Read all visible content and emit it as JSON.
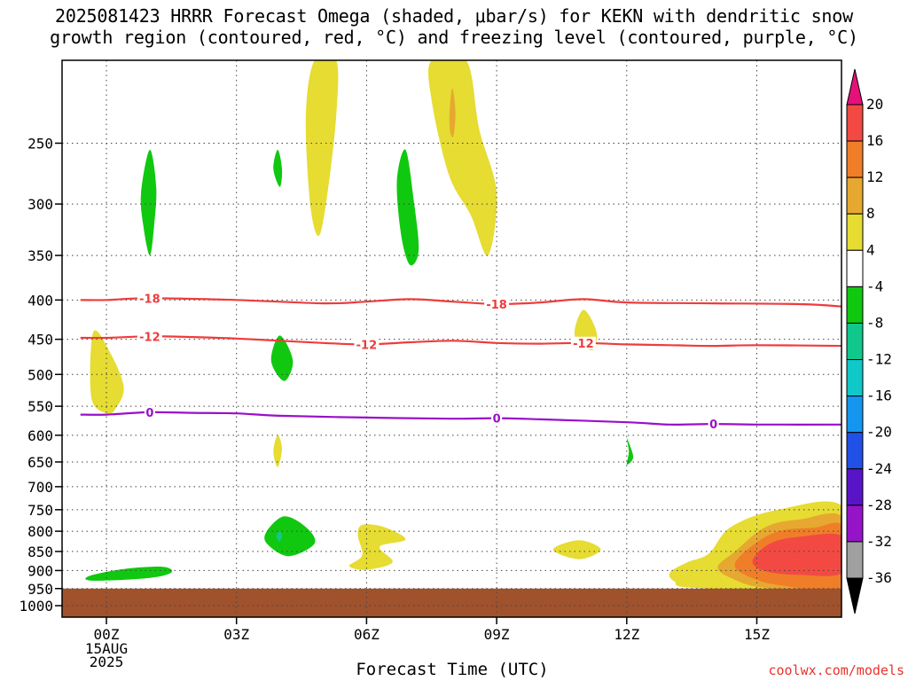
{
  "title_lines": [
    "2025081423 HRRR Forecast Omega (shaded, μbar/s) for KEKN with dendritic snow",
    "growth region (contoured, red, °C) and freezing level (contoured, purple, °C)"
  ],
  "credit": "coolwx.com/models",
  "chart_data": {
    "type": "heatmap",
    "xlabel": "Forecast Time (UTC)",
    "ylabel": "",
    "x_ticks": [
      {
        "hour": 0,
        "label": "00Z",
        "sub": [
          "15AUG",
          "2025"
        ]
      },
      {
        "hour": 3,
        "label": "03Z",
        "sub": []
      },
      {
        "hour": 6,
        "label": "06Z",
        "sub": []
      },
      {
        "hour": 9,
        "label": "09Z",
        "sub": []
      },
      {
        "hour": 12,
        "label": "12Z",
        "sub": []
      },
      {
        "hour": 15,
        "label": "15Z",
        "sub": []
      }
    ],
    "xlim": [
      -0.6,
      17
    ],
    "y_ticks": [
      250,
      300,
      350,
      400,
      450,
      500,
      550,
      600,
      650,
      700,
      750,
      800,
      850,
      900,
      950,
      1000
    ],
    "ylim": [
      195,
      1035
    ],
    "ground_level_hpa": 950,
    "colors": {
      "ground": "#a0522d",
      "red_contour": "#ee3c3c",
      "purple_contour": "#9a10c8"
    },
    "colorbar": {
      "labels": [
        "20",
        "16",
        "12",
        "8",
        "4",
        "-4",
        "-8",
        "-12",
        "-16",
        "-20",
        "-24",
        "-28",
        "-32",
        "-36"
      ],
      "bins": [
        {
          "range": ">20",
          "color": "#e5107a"
        },
        {
          "range": "16-20",
          "color": "#f24a42"
        },
        {
          "range": "12-16",
          "color": "#f07e28"
        },
        {
          "range": "8-12",
          "color": "#e6a830"
        },
        {
          "range": "4-8",
          "color": "#e6dc32"
        },
        {
          "range": "-4-4",
          "color": "#ffffff"
        },
        {
          "range": "-8--4",
          "color": "#10c810"
        },
        {
          "range": "-12--8",
          "color": "#10c88c"
        },
        {
          "range": "-16--12",
          "color": "#10c8c8"
        },
        {
          "range": "-20--16",
          "color": "#1496ef"
        },
        {
          "range": "-24--20",
          "color": "#2050e6"
        },
        {
          "range": "-28--24",
          "color": "#5a14c8"
        },
        {
          "range": "-32--28",
          "color": "#9614c8"
        },
        {
          "range": "-36--32",
          "color": "#a0a0a0"
        },
        {
          "range": "<-36",
          "color": "#000000"
        }
      ]
    },
    "contours": [
      {
        "value": "-18",
        "label": "-18",
        "color": "red",
        "points": [
          [
            -0.6,
            400
          ],
          [
            0,
            400
          ],
          [
            1,
            398
          ],
          [
            3,
            400
          ],
          [
            5,
            404
          ],
          [
            6,
            402
          ],
          [
            7,
            399
          ],
          [
            8,
            402
          ],
          [
            9,
            405
          ],
          [
            10,
            403
          ],
          [
            11,
            399
          ],
          [
            12,
            403
          ],
          [
            14,
            404
          ],
          [
            16,
            405
          ],
          [
            17,
            408
          ]
        ],
        "labels_at": [
          [
            1,
            398
          ],
          [
            9,
            405
          ]
        ]
      },
      {
        "value": "-12",
        "label": "-12",
        "color": "red",
        "points": [
          [
            -0.6,
            448
          ],
          [
            0,
            448
          ],
          [
            1,
            446
          ],
          [
            2,
            447
          ],
          [
            3,
            449
          ],
          [
            4,
            452
          ],
          [
            5,
            455
          ],
          [
            6,
            457
          ],
          [
            7,
            454
          ],
          [
            8,
            452
          ],
          [
            9,
            455
          ],
          [
            10,
            456
          ],
          [
            11,
            455
          ],
          [
            12,
            457
          ],
          [
            13,
            458
          ],
          [
            14,
            459
          ],
          [
            15,
            458
          ],
          [
            17,
            459
          ]
        ],
        "labels_at": [
          [
            1,
            446
          ],
          [
            6,
            457
          ],
          [
            11,
            455
          ]
        ]
      },
      {
        "value": "0",
        "label": "0",
        "color": "purple",
        "points": [
          [
            -0.6,
            564
          ],
          [
            0,
            564
          ],
          [
            1,
            560
          ],
          [
            2,
            561
          ],
          [
            3,
            562
          ],
          [
            4,
            566
          ],
          [
            6,
            569
          ],
          [
            8,
            571
          ],
          [
            9,
            570
          ],
          [
            10,
            572
          ],
          [
            12,
            577
          ],
          [
            13,
            581
          ],
          [
            14,
            580
          ],
          [
            15,
            581
          ],
          [
            17,
            581
          ]
        ],
        "labels_at": [
          [
            1,
            560
          ],
          [
            9,
            570
          ],
          [
            14,
            580
          ]
        ]
      }
    ],
    "omega_regions": [
      {
        "value": 4,
        "points": [
          [
            4.8,
            195
          ],
          [
            5.3,
            195
          ],
          [
            5.3,
            230
          ],
          [
            5.1,
            290
          ],
          [
            4.9,
            330
          ],
          [
            4.7,
            300
          ],
          [
            4.6,
            230
          ]
        ]
      },
      {
        "value": 4,
        "points": [
          [
            7.5,
            195
          ],
          [
            8.3,
            195
          ],
          [
            8.6,
            240
          ],
          [
            9.0,
            290
          ],
          [
            8.8,
            350
          ],
          [
            8.4,
            310
          ],
          [
            7.9,
            275
          ],
          [
            7.5,
            220
          ]
        ]
      },
      {
        "value": 8,
        "points": [
          [
            7.92,
            225
          ],
          [
            7.98,
            212
          ],
          [
            8.05,
            228
          ],
          [
            8.0,
            245
          ],
          [
            7.92,
            240
          ]
        ]
      },
      {
        "value": -4,
        "points": [
          [
            1.0,
            255
          ],
          [
            1.15,
            285
          ],
          [
            1.1,
            320
          ],
          [
            1.0,
            350
          ],
          [
            0.85,
            320
          ],
          [
            0.8,
            290
          ]
        ]
      },
      {
        "value": -4,
        "points": [
          [
            3.95,
            255
          ],
          [
            4.05,
            270
          ],
          [
            4.0,
            285
          ],
          [
            3.85,
            270
          ]
        ]
      },
      {
        "value": -4,
        "points": [
          [
            6.9,
            255
          ],
          [
            7.1,
            300
          ],
          [
            7.2,
            345
          ],
          [
            7.0,
            360
          ],
          [
            6.8,
            330
          ],
          [
            6.7,
            280
          ]
        ]
      },
      {
        "value": 4,
        "points": [
          [
            -0.35,
            535
          ],
          [
            -0.3,
            440
          ],
          [
            0.1,
            470
          ],
          [
            0.4,
            520
          ],
          [
            0.2,
            555
          ],
          [
            0.0,
            562
          ]
        ]
      },
      {
        "value": -4,
        "points": [
          [
            3.8,
            480
          ],
          [
            4.0,
            445
          ],
          [
            4.3,
            480
          ],
          [
            4.1,
            510
          ]
        ]
      },
      {
        "value": 4,
        "points": [
          [
            10.8,
            445
          ],
          [
            11.0,
            412
          ],
          [
            11.3,
            440
          ],
          [
            11.2,
            465
          ]
        ]
      },
      {
        "value": 4,
        "points": [
          [
            3.85,
            630
          ],
          [
            3.95,
            600
          ],
          [
            4.05,
            625
          ],
          [
            3.95,
            660
          ]
        ]
      },
      {
        "value": -4,
        "points": [
          [
            12.05,
            630
          ],
          [
            12.0,
            605
          ],
          [
            12.15,
            640
          ],
          [
            12.0,
            655
          ]
        ]
      },
      {
        "value": -4,
        "points": [
          [
            3.7,
            800
          ],
          [
            4.1,
            765
          ],
          [
            4.6,
            790
          ],
          [
            4.8,
            830
          ],
          [
            4.2,
            862
          ],
          [
            3.7,
            830
          ]
        ]
      },
      {
        "value": -8,
        "points": [
          [
            3.92,
            810
          ],
          [
            4.0,
            800
          ],
          [
            4.05,
            812
          ],
          [
            3.98,
            825
          ]
        ]
      },
      {
        "value": 4,
        "points": [
          [
            5.6,
            888
          ],
          [
            5.9,
            860
          ],
          [
            5.8,
            810
          ],
          [
            5.9,
            785
          ],
          [
            6.4,
            790
          ],
          [
            6.9,
            820
          ],
          [
            6.3,
            838
          ],
          [
            6.6,
            878
          ],
          [
            6.0,
            898
          ]
        ]
      },
      {
        "value": 4,
        "points": [
          [
            10.3,
            845
          ],
          [
            10.9,
            822
          ],
          [
            11.4,
            845
          ],
          [
            10.9,
            870
          ]
        ]
      },
      {
        "value": -4,
        "points": [
          [
            -0.4,
            915
          ],
          [
            0.4,
            896
          ],
          [
            1.3,
            890
          ],
          [
            1.5,
            905
          ],
          [
            1.0,
            920
          ],
          [
            -0.3,
            928
          ]
        ]
      },
      {
        "value": 4,
        "points": [
          [
            13.0,
            905
          ],
          [
            13.4,
            878
          ],
          [
            13.9,
            855
          ],
          [
            14.4,
            790
          ],
          [
            15.5,
            750
          ],
          [
            17,
            745
          ],
          [
            17,
            950
          ],
          [
            13.6,
            948
          ],
          [
            13.1,
            930
          ]
        ]
      },
      {
        "value": 8,
        "points": [
          [
            14.1,
            890
          ],
          [
            14.5,
            850
          ],
          [
            15.2,
            790
          ],
          [
            16.0,
            772
          ],
          [
            17,
            770
          ],
          [
            17,
            950
          ],
          [
            15.2,
            948
          ],
          [
            14.4,
            920
          ]
        ]
      },
      {
        "value": 12,
        "points": [
          [
            14.5,
            880
          ],
          [
            14.9,
            835
          ],
          [
            15.5,
            800
          ],
          [
            16.3,
            792
          ],
          [
            17,
            790
          ],
          [
            17,
            945
          ],
          [
            15.5,
            940
          ],
          [
            14.7,
            910
          ]
        ]
      },
      {
        "value": 16,
        "points": [
          [
            14.9,
            875
          ],
          [
            15.3,
            830
          ],
          [
            16.0,
            813
          ],
          [
            17,
            813
          ],
          [
            17,
            905
          ],
          [
            16.0,
            912
          ],
          [
            15.2,
            902
          ]
        ]
      }
    ]
  }
}
